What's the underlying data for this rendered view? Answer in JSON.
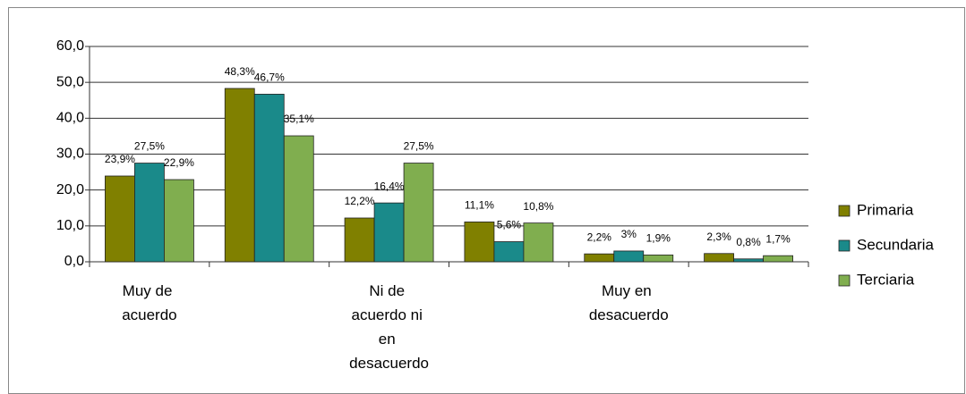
{
  "chart_data": {
    "type": "bar",
    "categories": [
      "Muy de acuerdo",
      null,
      "Ni de acuerdo ni en desacuerdo",
      null,
      "Muy en desacuerdo",
      null
    ],
    "series": [
      {
        "name": "Primaria",
        "color": "#808000",
        "values": [
          23.9,
          48.3,
          12.2,
          11.1,
          2.2,
          2.3
        ],
        "value_labels": [
          "23,9%",
          "48,3%",
          "12,2%",
          "11,1%",
          "2,2%",
          "2,3%"
        ]
      },
      {
        "name": "Secundaria",
        "color": "#1a8a8a",
        "values": [
          27.5,
          46.7,
          16.4,
          5.6,
          3,
          0.8
        ],
        "value_labels": [
          "27,5%",
          "46,7%",
          "16,4%",
          "5,6%",
          "3%",
          "0,8%"
        ]
      },
      {
        "name": "Terciaria",
        "color": "#80ae4f",
        "values": [
          22.9,
          35.1,
          27.5,
          10.8,
          1.9,
          1.7
        ],
        "value_labels": [
          "22,9%",
          "35,1%",
          "27,5%",
          "10,8%",
          "1,9%",
          "1,7%"
        ]
      }
    ],
    "ylim": [
      0,
      60
    ],
    "yticks": [
      {
        "value": 0,
        "label": "0,0"
      },
      {
        "value": 10,
        "label": "10,0"
      },
      {
        "value": 20,
        "label": "20,0"
      },
      {
        "value": 30,
        "label": "30,0"
      },
      {
        "value": 40,
        "label": "40,0"
      },
      {
        "value": 50,
        "label": "50,0"
      },
      {
        "value": 60,
        "label": "60,0"
      }
    ],
    "grid": true,
    "legend": "right"
  }
}
